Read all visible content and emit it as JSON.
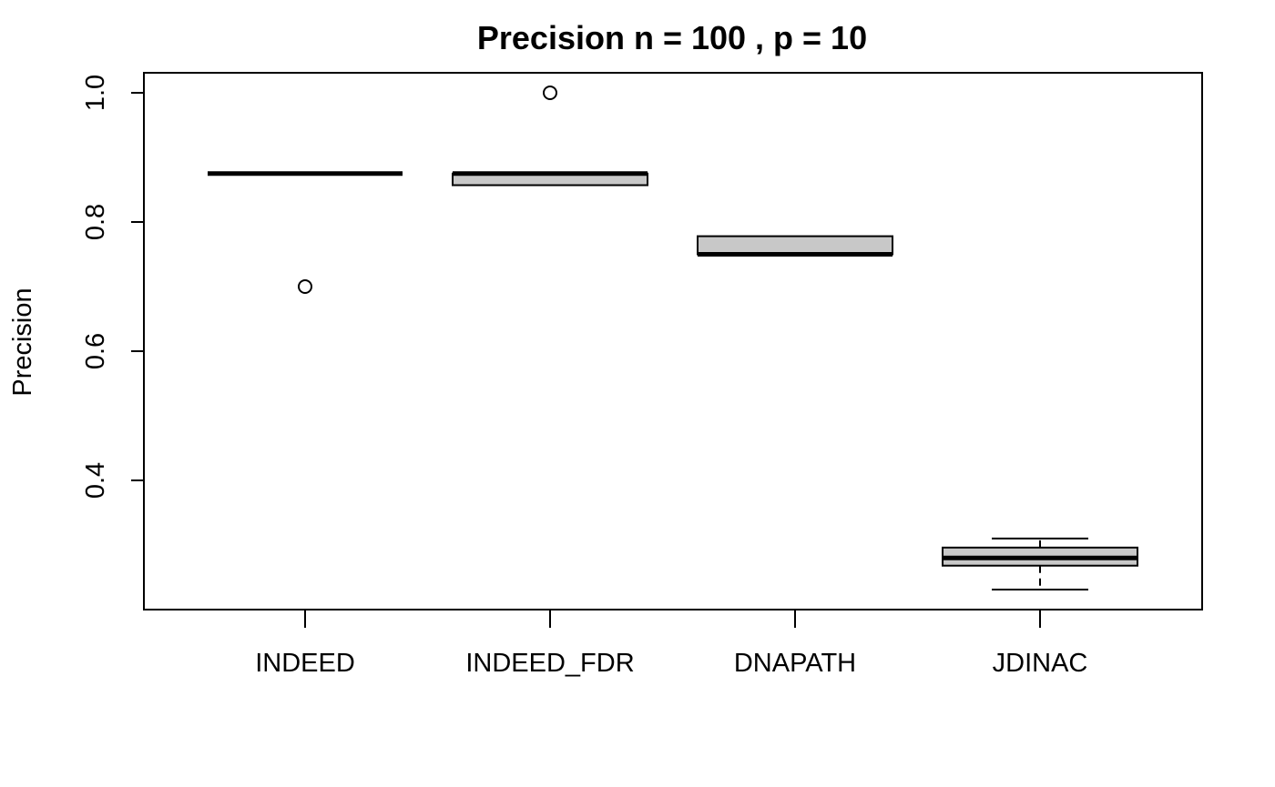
{
  "chart_data": {
    "type": "boxplot",
    "title": "Precision n = 100 , p = 10",
    "xlabel": "",
    "ylabel": "Precision",
    "categories": [
      "INDEED",
      "INDEED_FDR",
      "DNAPATH",
      "JDINAC"
    ],
    "yticks": [
      "0.4",
      "0.6",
      "0.8",
      "1.0"
    ],
    "ylim": [
      0.23,
      1.03
    ],
    "grid": false,
    "box_fill": "#c8c8c8",
    "boxes": [
      {
        "category": "INDEED",
        "whisker_low": 0.875,
        "q1": 0.875,
        "median": 0.875,
        "q3": 0.875,
        "whisker_high": 0.875,
        "outliers": [
          0.7
        ]
      },
      {
        "category": "INDEED_FDR",
        "whisker_low": 0.857,
        "q1": 0.857,
        "median": 0.875,
        "q3": 0.875,
        "whisker_high": 0.875,
        "outliers": [
          1.0
        ]
      },
      {
        "category": "DNAPATH",
        "whisker_low": 0.75,
        "q1": 0.75,
        "median": 0.75,
        "q3": 0.778,
        "whisker_high": 0.778,
        "outliers": []
      },
      {
        "category": "JDINAC",
        "whisker_low": 0.231,
        "q1": 0.268,
        "median": 0.28,
        "q3": 0.296,
        "whisker_high": 0.31,
        "outliers": []
      }
    ]
  }
}
